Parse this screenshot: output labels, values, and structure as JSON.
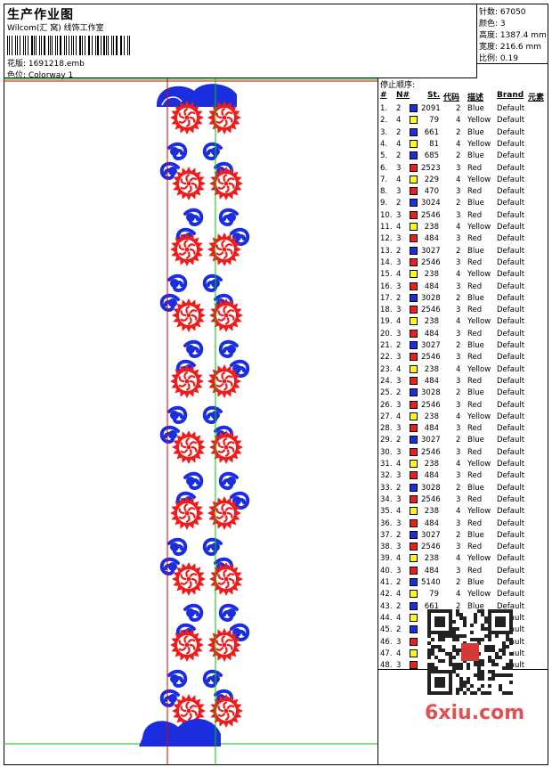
{
  "header": {
    "title": "生产作业图",
    "subtitle": "Wilcom(汇 窝) 线饰工作室",
    "file_label": "花版: 1691218.emb",
    "colorway_label": "色位: Colorway 1"
  },
  "stats": [
    {
      "label": "针数: 67050"
    },
    {
      "label": "颜色: 3"
    },
    {
      "label": "高度: 1387.4 mm"
    },
    {
      "label": "宽度: 216.6 mm"
    },
    {
      "label": "比例: 0.19"
    }
  ],
  "stop_sequence": {
    "title": "停止顺序:",
    "headers": {
      "idx": "#",
      "needle": "N#",
      "st": "St.",
      "code": "代码",
      "desc": "描述",
      "brand": "Brand",
      "elem": "元素"
    },
    "rows": [
      {
        "idx": "1.",
        "n": "2",
        "color": "#1a2ee0",
        "code": "2091",
        "num": "2",
        "desc": "Blue",
        "brand": "Default"
      },
      {
        "idx": "2.",
        "n": "4",
        "color": "#ffff00",
        "code": "79",
        "num": "4",
        "desc": "Yellow",
        "brand": "Default"
      },
      {
        "idx": "3.",
        "n": "2",
        "color": "#1a2ee0",
        "code": "661",
        "num": "2",
        "desc": "Blue",
        "brand": "Default"
      },
      {
        "idx": "4.",
        "n": "4",
        "color": "#ffff00",
        "code": "81",
        "num": "4",
        "desc": "Yellow",
        "brand": "Default"
      },
      {
        "idx": "5.",
        "n": "2",
        "color": "#1a2ee0",
        "code": "685",
        "num": "2",
        "desc": "Blue",
        "brand": "Default"
      },
      {
        "idx": "6.",
        "n": "3",
        "color": "#ee1c1c",
        "code": "2523",
        "num": "3",
        "desc": "Red",
        "brand": "Default"
      },
      {
        "idx": "7.",
        "n": "4",
        "color": "#ffff00",
        "code": "229",
        "num": "4",
        "desc": "Yellow",
        "brand": "Default"
      },
      {
        "idx": "8.",
        "n": "3",
        "color": "#ee1c1c",
        "code": "470",
        "num": "3",
        "desc": "Red",
        "brand": "Default"
      },
      {
        "idx": "9.",
        "n": "2",
        "color": "#1a2ee0",
        "code": "3024",
        "num": "2",
        "desc": "Blue",
        "brand": "Default"
      },
      {
        "idx": "10.",
        "n": "3",
        "color": "#ee1c1c",
        "code": "2546",
        "num": "3",
        "desc": "Red",
        "brand": "Default"
      },
      {
        "idx": "11.",
        "n": "4",
        "color": "#ffff00",
        "code": "238",
        "num": "4",
        "desc": "Yellow",
        "brand": "Default"
      },
      {
        "idx": "12.",
        "n": "3",
        "color": "#ee1c1c",
        "code": "484",
        "num": "3",
        "desc": "Red",
        "brand": "Default"
      },
      {
        "idx": "13.",
        "n": "2",
        "color": "#1a2ee0",
        "code": "3027",
        "num": "2",
        "desc": "Blue",
        "brand": "Default"
      },
      {
        "idx": "14.",
        "n": "3",
        "color": "#ee1c1c",
        "code": "2546",
        "num": "3",
        "desc": "Red",
        "brand": "Default"
      },
      {
        "idx": "15.",
        "n": "4",
        "color": "#ffff00",
        "code": "238",
        "num": "4",
        "desc": "Yellow",
        "brand": "Default"
      },
      {
        "idx": "16.",
        "n": "3",
        "color": "#ee1c1c",
        "code": "484",
        "num": "3",
        "desc": "Red",
        "brand": "Default"
      },
      {
        "idx": "17.",
        "n": "2",
        "color": "#1a2ee0",
        "code": "3028",
        "num": "2",
        "desc": "Blue",
        "brand": "Default"
      },
      {
        "idx": "18.",
        "n": "3",
        "color": "#ee1c1c",
        "code": "2546",
        "num": "3",
        "desc": "Red",
        "brand": "Default"
      },
      {
        "idx": "19.",
        "n": "4",
        "color": "#ffff00",
        "code": "238",
        "num": "4",
        "desc": "Yellow",
        "brand": "Default"
      },
      {
        "idx": "20.",
        "n": "3",
        "color": "#ee1c1c",
        "code": "484",
        "num": "3",
        "desc": "Red",
        "brand": "Default"
      },
      {
        "idx": "21.",
        "n": "2",
        "color": "#1a2ee0",
        "code": "3027",
        "num": "2",
        "desc": "Blue",
        "brand": "Default"
      },
      {
        "idx": "22.",
        "n": "3",
        "color": "#ee1c1c",
        "code": "2546",
        "num": "3",
        "desc": "Red",
        "brand": "Default"
      },
      {
        "idx": "23.",
        "n": "4",
        "color": "#ffff00",
        "code": "238",
        "num": "4",
        "desc": "Yellow",
        "brand": "Default"
      },
      {
        "idx": "24.",
        "n": "3",
        "color": "#ee1c1c",
        "code": "484",
        "num": "3",
        "desc": "Red",
        "brand": "Default"
      },
      {
        "idx": "25.",
        "n": "2",
        "color": "#1a2ee0",
        "code": "3028",
        "num": "2",
        "desc": "Blue",
        "brand": "Default"
      },
      {
        "idx": "26.",
        "n": "3",
        "color": "#ee1c1c",
        "code": "2546",
        "num": "3",
        "desc": "Red",
        "brand": "Default"
      },
      {
        "idx": "27.",
        "n": "4",
        "color": "#ffff00",
        "code": "238",
        "num": "4",
        "desc": "Yellow",
        "brand": "Default"
      },
      {
        "idx": "28.",
        "n": "3",
        "color": "#ee1c1c",
        "code": "484",
        "num": "3",
        "desc": "Red",
        "brand": "Default"
      },
      {
        "idx": "29.",
        "n": "2",
        "color": "#1a2ee0",
        "code": "3027",
        "num": "2",
        "desc": "Blue",
        "brand": "Default"
      },
      {
        "idx": "30.",
        "n": "3",
        "color": "#ee1c1c",
        "code": "2546",
        "num": "3",
        "desc": "Red",
        "brand": "Default"
      },
      {
        "idx": "31.",
        "n": "4",
        "color": "#ffff00",
        "code": "238",
        "num": "4",
        "desc": "Yellow",
        "brand": "Default"
      },
      {
        "idx": "32.",
        "n": "3",
        "color": "#ee1c1c",
        "code": "484",
        "num": "3",
        "desc": "Red",
        "brand": "Default"
      },
      {
        "idx": "33.",
        "n": "2",
        "color": "#1a2ee0",
        "code": "3028",
        "num": "2",
        "desc": "Blue",
        "brand": "Default"
      },
      {
        "idx": "34.",
        "n": "3",
        "color": "#ee1c1c",
        "code": "2546",
        "num": "3",
        "desc": "Red",
        "brand": "Default"
      },
      {
        "idx": "35.",
        "n": "4",
        "color": "#ffff00",
        "code": "238",
        "num": "4",
        "desc": "Yellow",
        "brand": "Default"
      },
      {
        "idx": "36.",
        "n": "3",
        "color": "#ee1c1c",
        "code": "484",
        "num": "3",
        "desc": "Red",
        "brand": "Default"
      },
      {
        "idx": "37.",
        "n": "2",
        "color": "#1a2ee0",
        "code": "3027",
        "num": "2",
        "desc": "Blue",
        "brand": "Default"
      },
      {
        "idx": "38.",
        "n": "3",
        "color": "#ee1c1c",
        "code": "2546",
        "num": "3",
        "desc": "Red",
        "brand": "Default"
      },
      {
        "idx": "39.",
        "n": "4",
        "color": "#ffff00",
        "code": "238",
        "num": "4",
        "desc": "Yellow",
        "brand": "Default"
      },
      {
        "idx": "40.",
        "n": "3",
        "color": "#ee1c1c",
        "code": "484",
        "num": "3",
        "desc": "Red",
        "brand": "Default"
      },
      {
        "idx": "41.",
        "n": "2",
        "color": "#1a2ee0",
        "code": "5140",
        "num": "2",
        "desc": "Blue",
        "brand": "Default"
      },
      {
        "idx": "42.",
        "n": "4",
        "color": "#ffff00",
        "code": "79",
        "num": "4",
        "desc": "Yellow",
        "brand": "Default"
      },
      {
        "idx": "43.",
        "n": "2",
        "color": "#1a2ee0",
        "code": "661",
        "num": "2",
        "desc": "Blue",
        "brand": "Default"
      },
      {
        "idx": "44.",
        "n": "4",
        "color": "#ffff00",
        "code": "",
        "num": "",
        "desc": "",
        "brand": "Default"
      },
      {
        "idx": "45.",
        "n": "2",
        "color": "#1a2ee0",
        "code": "",
        "num": "",
        "desc": "",
        "brand": "Default"
      },
      {
        "idx": "46.",
        "n": "3",
        "color": "#ee1c1c",
        "code": "",
        "num": "",
        "desc": "",
        "brand": "Default"
      },
      {
        "idx": "47.",
        "n": "4",
        "color": "#ffff00",
        "code": "",
        "num": "",
        "desc": "",
        "brand": "Default"
      },
      {
        "idx": "48.",
        "n": "3",
        "color": "#ee1c1c",
        "code": "",
        "num": "",
        "desc": "",
        "brand": "Default"
      }
    ]
  },
  "colors": {
    "red": "#ee1c1c",
    "blue": "#1a2ee0",
    "yellow": "#ffff00",
    "green_guide": "#00c800",
    "red_guide": "#e00000"
  },
  "watermark": "6xiu.com",
  "qr_icon": "qr-code-icon"
}
